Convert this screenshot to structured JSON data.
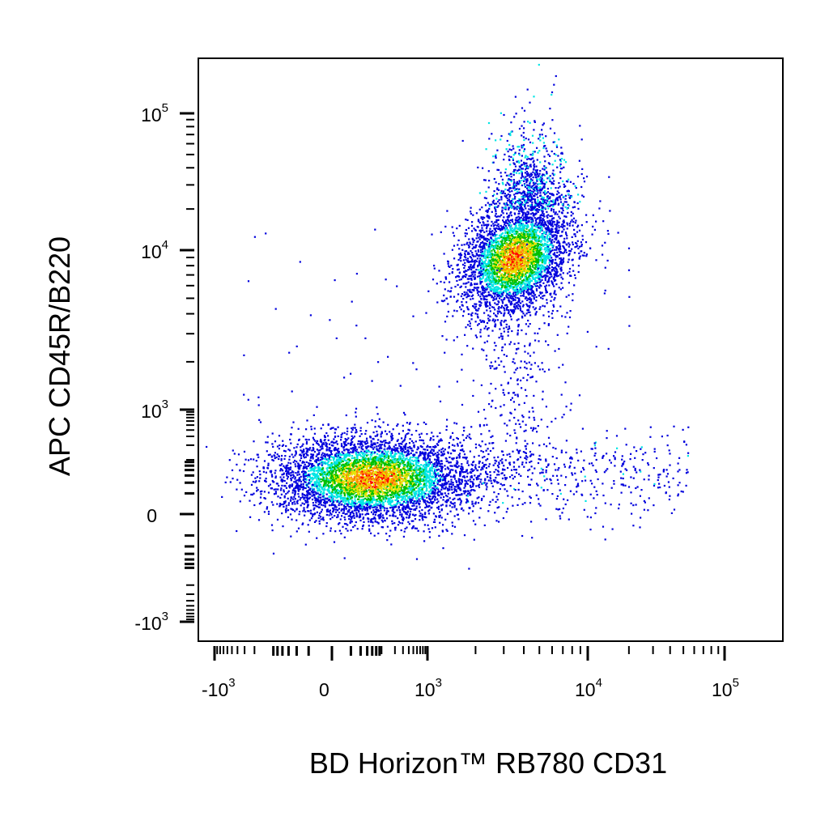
{
  "chart_data": {
    "type": "scatter",
    "title": "",
    "xlabel": "BD Horizon™ RB780 CD31",
    "ylabel": "APC CD45R/B220",
    "x_scale": "biexponential",
    "y_scale": "biexponential",
    "xlim": [
      -1500,
      200000
    ],
    "ylim": [
      -1500,
      200000
    ],
    "x_ticks": [
      {
        "value": -1000,
        "base": "-10",
        "exp": "3"
      },
      {
        "value": 0,
        "base": "0",
        "exp": ""
      },
      {
        "value": 1000,
        "base": "10",
        "exp": "3"
      },
      {
        "value": 10000,
        "base": "10",
        "exp": "4"
      },
      {
        "value": 100000,
        "base": "10",
        "exp": "5"
      }
    ],
    "y_ticks": [
      {
        "value": -1000,
        "base": "-10",
        "exp": "3"
      },
      {
        "value": 0,
        "base": "0",
        "exp": ""
      },
      {
        "value": 1000,
        "base": "10",
        "exp": "3"
      },
      {
        "value": 10000,
        "base": "10",
        "exp": "4"
      },
      {
        "value": 100000,
        "base": "10",
        "exp": "5"
      }
    ],
    "grid": false,
    "legend": "none",
    "color_scale": "density (blue-cyan-green-yellow-red)",
    "populations": [
      {
        "description": "double-negative cluster",
        "center": [
          60,
          40
        ],
        "x_range": [
          -800,
          900
        ],
        "y_range": [
          -300,
          550
        ],
        "peak_density": "red"
      },
      {
        "description": "B220 high cluster",
        "center": [
          3500,
          9000
        ],
        "x_range": [
          1200,
          9000
        ],
        "y_range": [
          1500,
          70000
        ],
        "peak_density": "red"
      },
      {
        "description": "CD31 positive B220 negative scatter",
        "center": [
          5000,
          50
        ],
        "x_range": [
          1200,
          40000
        ],
        "y_range": [
          -300,
          550
        ],
        "peak_density": "blue"
      }
    ]
  },
  "colors": {
    "low": "#0000dd",
    "mid_low": "#00e5e5",
    "mid": "#00c000",
    "mid_high": "#e6e600",
    "high": "#ff0000",
    "axis": "#000000",
    "background": "#ffffff"
  }
}
